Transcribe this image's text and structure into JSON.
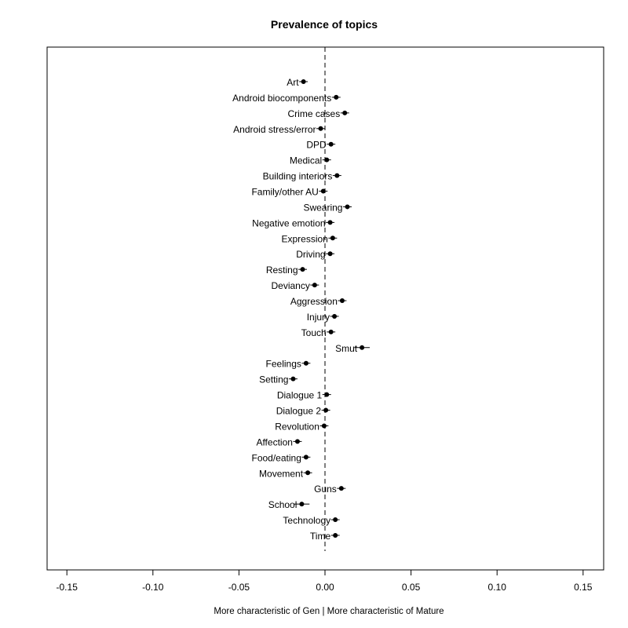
{
  "chart_data": {
    "type": "scatter",
    "title": "Prevalence of topics",
    "xlabel": "More characteristic of Gen | More characteristic of Mature",
    "ylabel": "",
    "xlim": [
      -0.16,
      0.16
    ],
    "xticks": [
      -0.15,
      -0.1,
      -0.05,
      0.0,
      0.05,
      0.1,
      0.15
    ],
    "xtick_labels": [
      "-0.15",
      "-0.10",
      "-0.05",
      "0.00",
      "0.05",
      "0.10",
      "0.15"
    ],
    "reference_line": {
      "x": 0.0,
      "style": "dashed"
    },
    "grid": false,
    "legend": "none",
    "points": [
      {
        "label": "Art",
        "x": -0.0125,
        "ci": [
          -0.015,
          -0.01
        ]
      },
      {
        "label": "Android biocomponents",
        "x": 0.0065,
        "ci": [
          0.004,
          0.009
        ]
      },
      {
        "label": "Crime cases",
        "x": 0.0115,
        "ci": [
          0.009,
          0.014
        ]
      },
      {
        "label": "Android stress/error",
        "x": -0.0025,
        "ci": [
          -0.005,
          0.0
        ]
      },
      {
        "label": "DPD",
        "x": 0.0035,
        "ci": [
          0.001,
          0.006
        ]
      },
      {
        "label": "Medical",
        "x": 0.001,
        "ci": [
          -0.0015,
          0.0035
        ]
      },
      {
        "label": "Building interiors",
        "x": 0.007,
        "ci": [
          0.0045,
          0.0095
        ]
      },
      {
        "label": "Family/other AU",
        "x": -0.001,
        "ci": [
          -0.0035,
          0.0015
        ]
      },
      {
        "label": "Swearing",
        "x": 0.013,
        "ci": [
          0.0105,
          0.0155
        ]
      },
      {
        "label": "Negative emotion",
        "x": 0.003,
        "ci": [
          0.0005,
          0.0055
        ]
      },
      {
        "label": "Expression",
        "x": 0.0045,
        "ci": [
          0.002,
          0.007
        ]
      },
      {
        "label": "Driving",
        "x": 0.003,
        "ci": [
          0.0005,
          0.0055
        ]
      },
      {
        "label": "Resting",
        "x": -0.013,
        "ci": [
          -0.0155,
          -0.0105
        ]
      },
      {
        "label": "Deviancy",
        "x": -0.006,
        "ci": [
          -0.0085,
          -0.0035
        ]
      },
      {
        "label": "Aggression",
        "x": 0.01,
        "ci": [
          0.0075,
          0.0125
        ]
      },
      {
        "label": "Injury",
        "x": 0.0055,
        "ci": [
          0.003,
          0.008
        ]
      },
      {
        "label": "Touch",
        "x": 0.0035,
        "ci": [
          0.001,
          0.006
        ]
      },
      {
        "label": "Smut",
        "x": 0.0215,
        "ci": [
          0.017,
          0.026
        ]
      },
      {
        "label": "Feelings",
        "x": -0.011,
        "ci": [
          -0.0135,
          -0.0085
        ]
      },
      {
        "label": "Setting",
        "x": -0.0185,
        "ci": [
          -0.021,
          -0.016
        ]
      },
      {
        "label": "Dialogue 1",
        "x": 0.001,
        "ci": [
          -0.0015,
          0.0035
        ]
      },
      {
        "label": "Dialogue 2",
        "x": 0.0005,
        "ci": [
          -0.002,
          0.003
        ]
      },
      {
        "label": "Revolution",
        "x": -0.0005,
        "ci": [
          -0.003,
          0.002
        ]
      },
      {
        "label": "Affection",
        "x": -0.016,
        "ci": [
          -0.0185,
          -0.0135
        ]
      },
      {
        "label": "Food/eating",
        "x": -0.011,
        "ci": [
          -0.0135,
          -0.0085
        ]
      },
      {
        "label": "Movement",
        "x": -0.01,
        "ci": [
          -0.0125,
          -0.0075
        ]
      },
      {
        "label": "Guns",
        "x": 0.0095,
        "ci": [
          0.007,
          0.012
        ]
      },
      {
        "label": "School",
        "x": -0.0135,
        "ci": [
          -0.018,
          -0.009
        ]
      },
      {
        "label": "Technology",
        "x": 0.006,
        "ci": [
          0.0035,
          0.0085
        ]
      },
      {
        "label": "Time",
        "x": 0.006,
        "ci": [
          0.0035,
          0.0085
        ]
      }
    ]
  }
}
